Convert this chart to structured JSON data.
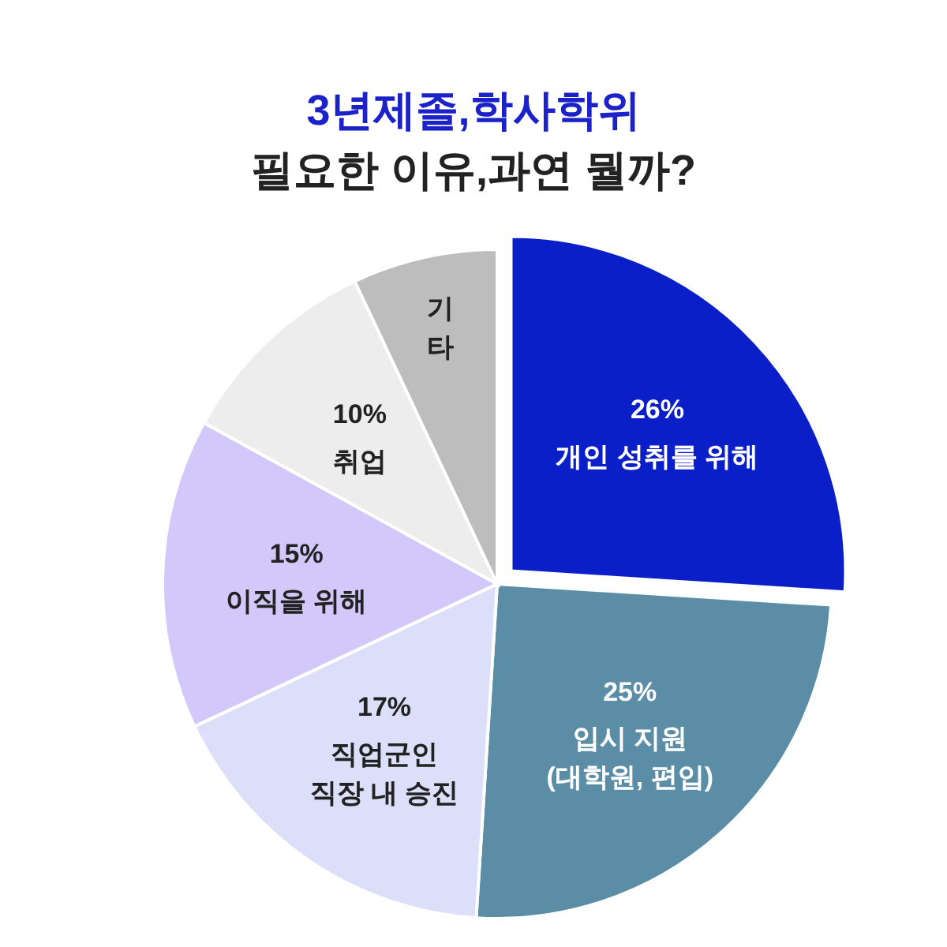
{
  "chart_data": {
    "type": "pie",
    "title": "3년제졸,학사학위",
    "subtitle": "필요한 이유,과연 뭘까?",
    "categories": [
      "개인 성취를 위해",
      "입시 지원\n(대학원, 편입)",
      "직업군인\n직장 내 승진",
      "이직을 위해",
      "취업",
      "기\n타"
    ],
    "values": [
      26,
      25,
      17,
      15,
      10,
      7
    ],
    "value_labels": [
      "26%",
      "25%",
      "17%",
      "15%",
      "10%",
      null
    ],
    "colors": [
      "#0a1fc8",
      "#5b8ea6",
      "#dcdff9",
      "#d2c9fa",
      "#ededed",
      "#bdbdbd"
    ]
  }
}
